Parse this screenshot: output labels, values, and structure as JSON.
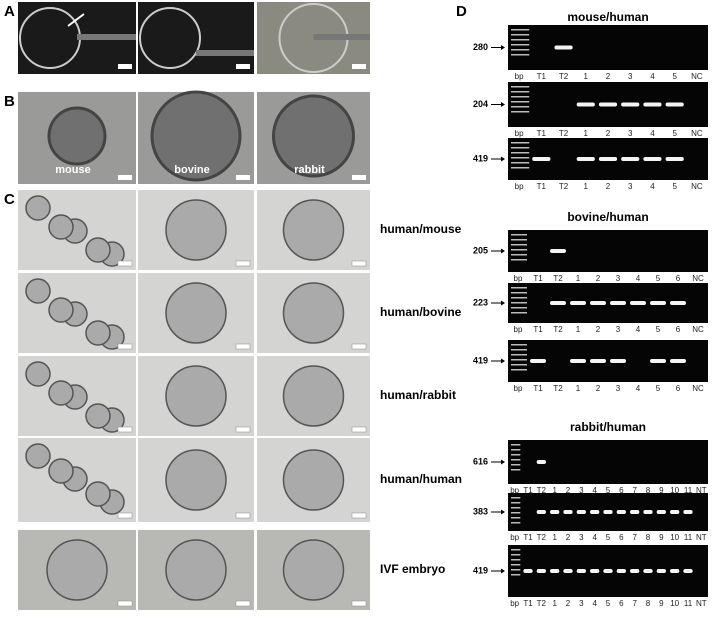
{
  "panels": {
    "a": "A",
    "b": "B",
    "c": "C",
    "d": "D"
  },
  "species_labels": [
    "mouse",
    "bovine",
    "rabbit"
  ],
  "row_labels": [
    "human/mouse",
    "human/bovine",
    "human/rabbit",
    "human/human",
    "IVF embryo"
  ],
  "gel_groups": [
    {
      "title": "mouse/human",
      "gels": [
        {
          "size": "280",
          "lanes": [
            "bp",
            "T1",
            "T2",
            "1",
            "2",
            "3",
            "4",
            "5",
            "NC"
          ]
        },
        {
          "size": "204",
          "lanes": [
            "bp",
            "T1",
            "T2",
            "1",
            "2",
            "3",
            "4",
            "5",
            "NC"
          ]
        },
        {
          "size": "419",
          "lanes": [
            "bp",
            "T1",
            "T2",
            "1",
            "2",
            "3",
            "4",
            "5",
            "NC"
          ]
        }
      ]
    },
    {
      "title": "bovine/human",
      "gels": [
        {
          "size": "205",
          "lanes": [
            "bp",
            "T1",
            "T2",
            "1",
            "2",
            "3",
            "4",
            "5",
            "6",
            "NC"
          ]
        },
        {
          "size": "223",
          "lanes": [
            "bp",
            "T1",
            "T2",
            "1",
            "2",
            "3",
            "4",
            "5",
            "6",
            "NC"
          ]
        },
        {
          "size": "419",
          "lanes": [
            "bp",
            "T1",
            "T2",
            "1",
            "2",
            "3",
            "4",
            "5",
            "6",
            "NC"
          ]
        }
      ]
    },
    {
      "title": "rabbit/human",
      "gels": [
        {
          "size": "616",
          "lanes": [
            "bp",
            "T1",
            "T2",
            "1",
            "2",
            "3",
            "4",
            "5",
            "6",
            "7",
            "8",
            "9",
            "10",
            "11",
            "NT"
          ]
        },
        {
          "size": "383",
          "lanes": [
            "bp",
            "T1",
            "T2",
            "1",
            "2",
            "3",
            "4",
            "5",
            "6",
            "7",
            "8",
            "9",
            "10",
            "11",
            "NT"
          ]
        },
        {
          "size": "419",
          "lanes": [
            "bp",
            "T1",
            "T2",
            "1",
            "2",
            "3",
            "4",
            "5",
            "6",
            "7",
            "8",
            "9",
            "10",
            "11",
            "NT"
          ]
        }
      ]
    }
  ]
}
